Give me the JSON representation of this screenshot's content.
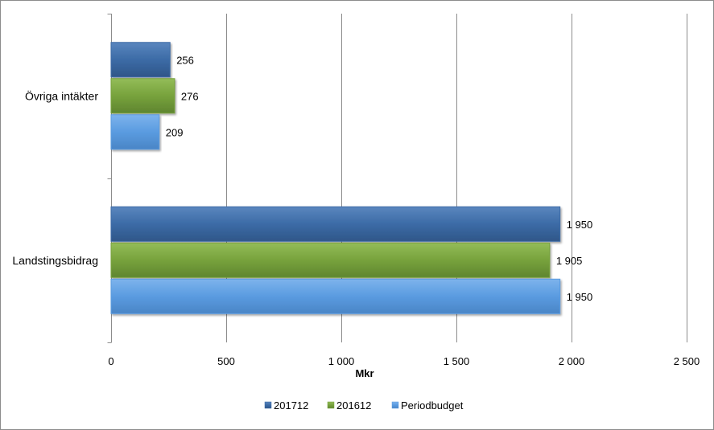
{
  "chart_data": {
    "type": "bar",
    "orientation": "horizontal",
    "categories": [
      "Övriga intäkter",
      "Landstingsbidrag"
    ],
    "series": [
      {
        "name": "201712",
        "values": [
          256,
          1950
        ],
        "labels": [
          "256",
          "1 950"
        ],
        "color": "#3C6BA6"
      },
      {
        "name": "201612",
        "values": [
          276,
          1905
        ],
        "labels": [
          "276",
          "1 905"
        ],
        "color": "#77A23C"
      },
      {
        "name": "Periodbudget",
        "values": [
          209,
          1950
        ],
        "labels": [
          "209",
          "1 950"
        ],
        "color": "#5A9BE0"
      }
    ],
    "xlabel": "Mkr",
    "ylabel": "",
    "xlim": [
      0,
      2500
    ],
    "xticks": [
      0,
      500,
      1000,
      1500,
      2000,
      2500
    ],
    "xtick_labels": [
      "0",
      "500",
      "1 000",
      "1 500",
      "2 000",
      "2 500"
    ],
    "grid": "vertical",
    "legend_position": "bottom"
  }
}
